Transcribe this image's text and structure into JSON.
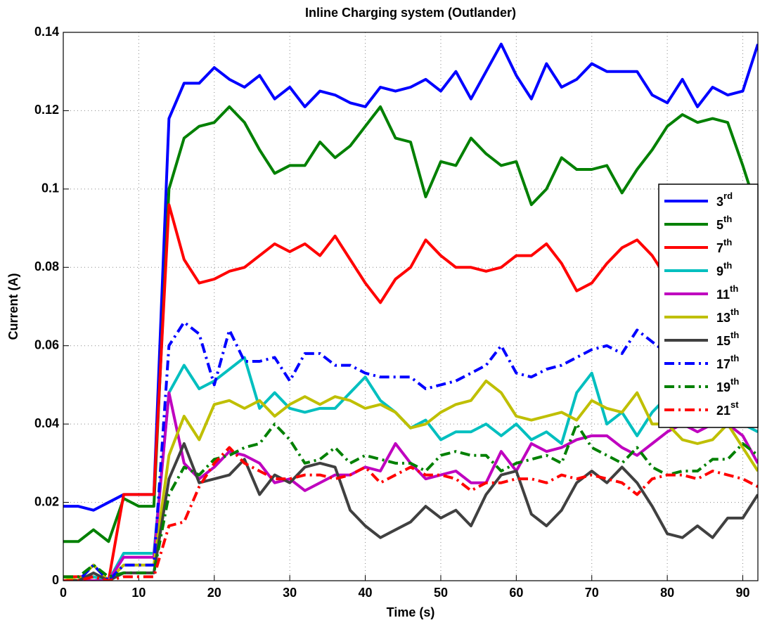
{
  "chart_data": {
    "type": "line",
    "title": "Inline Charging system (Outlander)",
    "x_label": "Time (s)",
    "y_label": "Current (A)",
    "xlim": [
      0,
      92
    ],
    "ylim": [
      0,
      0.14
    ],
    "xticks": [
      0,
      10,
      20,
      30,
      40,
      50,
      60,
      70,
      80,
      90
    ],
    "yticks": [
      0,
      0.02,
      0.04,
      0.06,
      0.08,
      0.1,
      0.12,
      0.14
    ],
    "grid": true,
    "legend": "right",
    "x": [
      0,
      2,
      4,
      6,
      8,
      10,
      12,
      14,
      16,
      18,
      20,
      22,
      24,
      26,
      28,
      30,
      32,
      34,
      36,
      38,
      40,
      42,
      44,
      46,
      48,
      50,
      52,
      54,
      56,
      58,
      60,
      62,
      64,
      66,
      68,
      70,
      72,
      74,
      76,
      78,
      80,
      82,
      84,
      86,
      88,
      90,
      92
    ],
    "series": [
      {
        "name": "3rd",
        "color": "#0000ff",
        "dash": "solid",
        "values": [
          0.019,
          0.019,
          0.018,
          0.02,
          0.022,
          0.022,
          0.022,
          0.118,
          0.127,
          0.127,
          0.131,
          0.128,
          0.126,
          0.129,
          0.123,
          0.126,
          0.121,
          0.125,
          0.124,
          0.122,
          0.121,
          0.126,
          0.125,
          0.126,
          0.128,
          0.125,
          0.13,
          0.123,
          0.13,
          0.137,
          0.129,
          0.123,
          0.132,
          0.126,
          0.128,
          0.132,
          0.13,
          0.13,
          0.13,
          0.124,
          0.122,
          0.128,
          0.121,
          0.126,
          0.124,
          0.125,
          0.137
        ]
      },
      {
        "name": "5th",
        "color": "#008000",
        "dash": "solid",
        "values": [
          0.01,
          0.01,
          0.013,
          0.01,
          0.021,
          0.019,
          0.019,
          0.1,
          0.113,
          0.116,
          0.117,
          0.121,
          0.117,
          0.11,
          0.104,
          0.106,
          0.106,
          0.112,
          0.108,
          0.111,
          0.116,
          0.121,
          0.113,
          0.112,
          0.098,
          0.107,
          0.106,
          0.113,
          0.109,
          0.106,
          0.107,
          0.096,
          0.1,
          0.108,
          0.105,
          0.105,
          0.106,
          0.099,
          0.105,
          0.11,
          0.116,
          0.119,
          0.117,
          0.118,
          0.117,
          0.106,
          0.094
        ]
      },
      {
        "name": "7th",
        "color": "#ff0000",
        "dash": "solid",
        "values": [
          0.001,
          0.001,
          0.001,
          0,
          0.022,
          0.022,
          0.022,
          0.096,
          0.082,
          0.076,
          0.077,
          0.079,
          0.08,
          0.083,
          0.086,
          0.084,
          0.086,
          0.083,
          0.088,
          0.082,
          0.076,
          0.071,
          0.077,
          0.08,
          0.087,
          0.083,
          0.08,
          0.08,
          0.079,
          0.08,
          0.083,
          0.083,
          0.086,
          0.081,
          0.074,
          0.076,
          0.081,
          0.085,
          0.087,
          0.083,
          0.077,
          0.084,
          0.083,
          0.085,
          0.083,
          0.091,
          0.08
        ]
      },
      {
        "name": "9th",
        "color": "#00bfbf",
        "dash": "solid",
        "values": [
          0.001,
          0,
          0.001,
          0,
          0.007,
          0.007,
          0.007,
          0.048,
          0.055,
          0.049,
          0.051,
          0.054,
          0.057,
          0.044,
          0.048,
          0.044,
          0.043,
          0.044,
          0.044,
          0.048,
          0.052,
          0.046,
          0.043,
          0.039,
          0.041,
          0.036,
          0.038,
          0.038,
          0.04,
          0.037,
          0.04,
          0.036,
          0.038,
          0.035,
          0.048,
          0.053,
          0.04,
          0.043,
          0.037,
          0.043,
          0.047,
          0.048,
          0.047,
          0.045,
          0.042,
          0.04,
          0.038
        ]
      },
      {
        "name": "11th",
        "color": "#bf00bf",
        "dash": "solid",
        "values": [
          0,
          0,
          0,
          0,
          0.006,
          0.006,
          0.006,
          0.048,
          0.03,
          0.026,
          0.029,
          0.033,
          0.032,
          0.03,
          0.025,
          0.026,
          0.023,
          0.025,
          0.027,
          0.027,
          0.029,
          0.028,
          0.035,
          0.03,
          0.026,
          0.027,
          0.028,
          0.025,
          0.025,
          0.033,
          0.028,
          0.035,
          0.033,
          0.034,
          0.036,
          0.037,
          0.037,
          0.034,
          0.032,
          0.035,
          0.038,
          0.04,
          0.038,
          0.04,
          0.04,
          0.037,
          0.03
        ]
      },
      {
        "name": "13th",
        "color": "#bfbf00",
        "dash": "solid",
        "values": [
          0.001,
          0,
          0.004,
          0,
          0.004,
          0.004,
          0.004,
          0.032,
          0.042,
          0.036,
          0.045,
          0.046,
          0.044,
          0.046,
          0.042,
          0.045,
          0.047,
          0.045,
          0.047,
          0.046,
          0.044,
          0.045,
          0.043,
          0.039,
          0.04,
          0.043,
          0.045,
          0.046,
          0.051,
          0.048,
          0.042,
          0.041,
          0.042,
          0.043,
          0.041,
          0.046,
          0.044,
          0.043,
          0.048,
          0.04,
          0.04,
          0.036,
          0.035,
          0.036,
          0.04,
          0.034,
          0.028
        ]
      },
      {
        "name": "15th",
        "color": "#404040",
        "dash": "solid",
        "values": [
          0,
          0,
          0.002,
          0,
          0.002,
          0.002,
          0.002,
          0.026,
          0.035,
          0.025,
          0.026,
          0.027,
          0.031,
          0.022,
          0.027,
          0.025,
          0.029,
          0.03,
          0.029,
          0.018,
          0.014,
          0.011,
          0.013,
          0.015,
          0.019,
          0.016,
          0.018,
          0.014,
          0.022,
          0.027,
          0.028,
          0.017,
          0.014,
          0.018,
          0.025,
          0.028,
          0.025,
          0.029,
          0.025,
          0.019,
          0.012,
          0.011,
          0.014,
          0.011,
          0.016,
          0.016,
          0.022
        ]
      },
      {
        "name": "17th",
        "color": "#0000ff",
        "dash": "dashdot",
        "values": [
          0,
          0,
          0.004,
          0,
          0.004,
          0.004,
          0.004,
          0.06,
          0.066,
          0.063,
          0.05,
          0.064,
          0.056,
          0.056,
          0.057,
          0.051,
          0.058,
          0.058,
          0.055,
          0.055,
          0.053,
          0.052,
          0.052,
          0.052,
          0.049,
          0.05,
          0.051,
          0.053,
          0.055,
          0.06,
          0.053,
          0.052,
          0.054,
          0.055,
          0.057,
          0.059,
          0.06,
          0.058,
          0.064,
          0.061,
          0.058,
          0.056,
          0.059,
          0.06,
          0.058,
          0.056,
          0.048
        ]
      },
      {
        "name": "19th",
        "color": "#008000",
        "dash": "dashdot",
        "values": [
          0.001,
          0.001,
          0.004,
          0.001,
          0.002,
          0.002,
          0.002,
          0.022,
          0.029,
          0.027,
          0.031,
          0.032,
          0.034,
          0.035,
          0.04,
          0.036,
          0.03,
          0.031,
          0.034,
          0.03,
          0.032,
          0.031,
          0.03,
          0.03,
          0.028,
          0.032,
          0.033,
          0.032,
          0.032,
          0.028,
          0.03,
          0.031,
          0.032,
          0.03,
          0.04,
          0.034,
          0.032,
          0.03,
          0.034,
          0.029,
          0.027,
          0.028,
          0.028,
          0.031,
          0.031,
          0.035,
          0.032
        ]
      },
      {
        "name": "21st",
        "color": "#ff0000",
        "dash": "dashdot",
        "values": [
          0,
          0,
          0.001,
          0,
          0.001,
          0.001,
          0.001,
          0.014,
          0.015,
          0.024,
          0.03,
          0.034,
          0.03,
          0.028,
          0.026,
          0.026,
          0.027,
          0.027,
          0.026,
          0.027,
          0.029,
          0.025,
          0.027,
          0.029,
          0.027,
          0.027,
          0.026,
          0.023,
          0.025,
          0.025,
          0.026,
          0.026,
          0.025,
          0.027,
          0.026,
          0.027,
          0.026,
          0.025,
          0.022,
          0.026,
          0.027,
          0.027,
          0.026,
          0.028,
          0.027,
          0.026,
          0.024
        ]
      }
    ]
  }
}
